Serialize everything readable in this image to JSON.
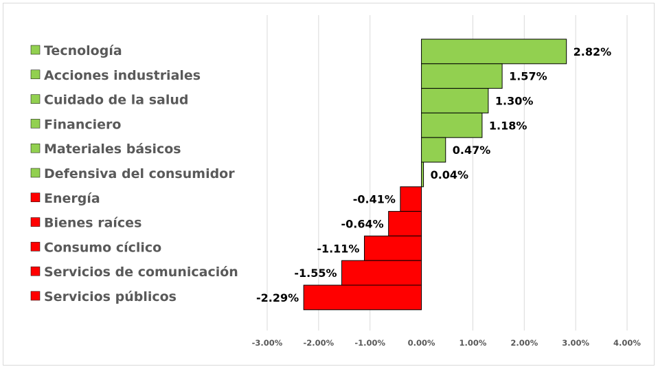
{
  "chart_data": {
    "type": "bar",
    "orientation": "horizontal",
    "categories": [
      "Tecnología",
      "Acciones industriales",
      "Cuidado de la salud",
      "Financiero",
      "Materiales básicos",
      "Defensiva del consumidor",
      "Energía",
      "Bienes raíces",
      "Consumo cíclico",
      "Servicios de comunicación",
      "Servicios públicos"
    ],
    "values": [
      2.82,
      1.57,
      1.3,
      1.18,
      0.47,
      0.04,
      -0.41,
      -0.64,
      -1.11,
      -1.55,
      -2.29
    ],
    "value_labels": [
      "2.82%",
      "1.57%",
      "1.30%",
      "1.18%",
      "0.47%",
      "0.04%",
      "-0.41%",
      "-0.64%",
      "-1.11%",
      "-1.55%",
      "-2.29%"
    ],
    "xlim": [
      -3.0,
      4.0
    ],
    "xticks": [
      -3,
      -2,
      -1,
      0,
      1,
      2,
      3,
      4
    ],
    "xtick_labels": [
      "-3.00%",
      "-2.00%",
      "-1.00%",
      "0.00%",
      "1.00%",
      "2.00%",
      "3.00%",
      "4.00%"
    ],
    "title": "",
    "xlabel": "",
    "ylabel": "",
    "grid": "vertical",
    "legend": "left",
    "colors": {
      "positive": "#92d050",
      "negative": "#ff0000",
      "outline": "#000000",
      "grid": "#d9d9d9"
    }
  }
}
